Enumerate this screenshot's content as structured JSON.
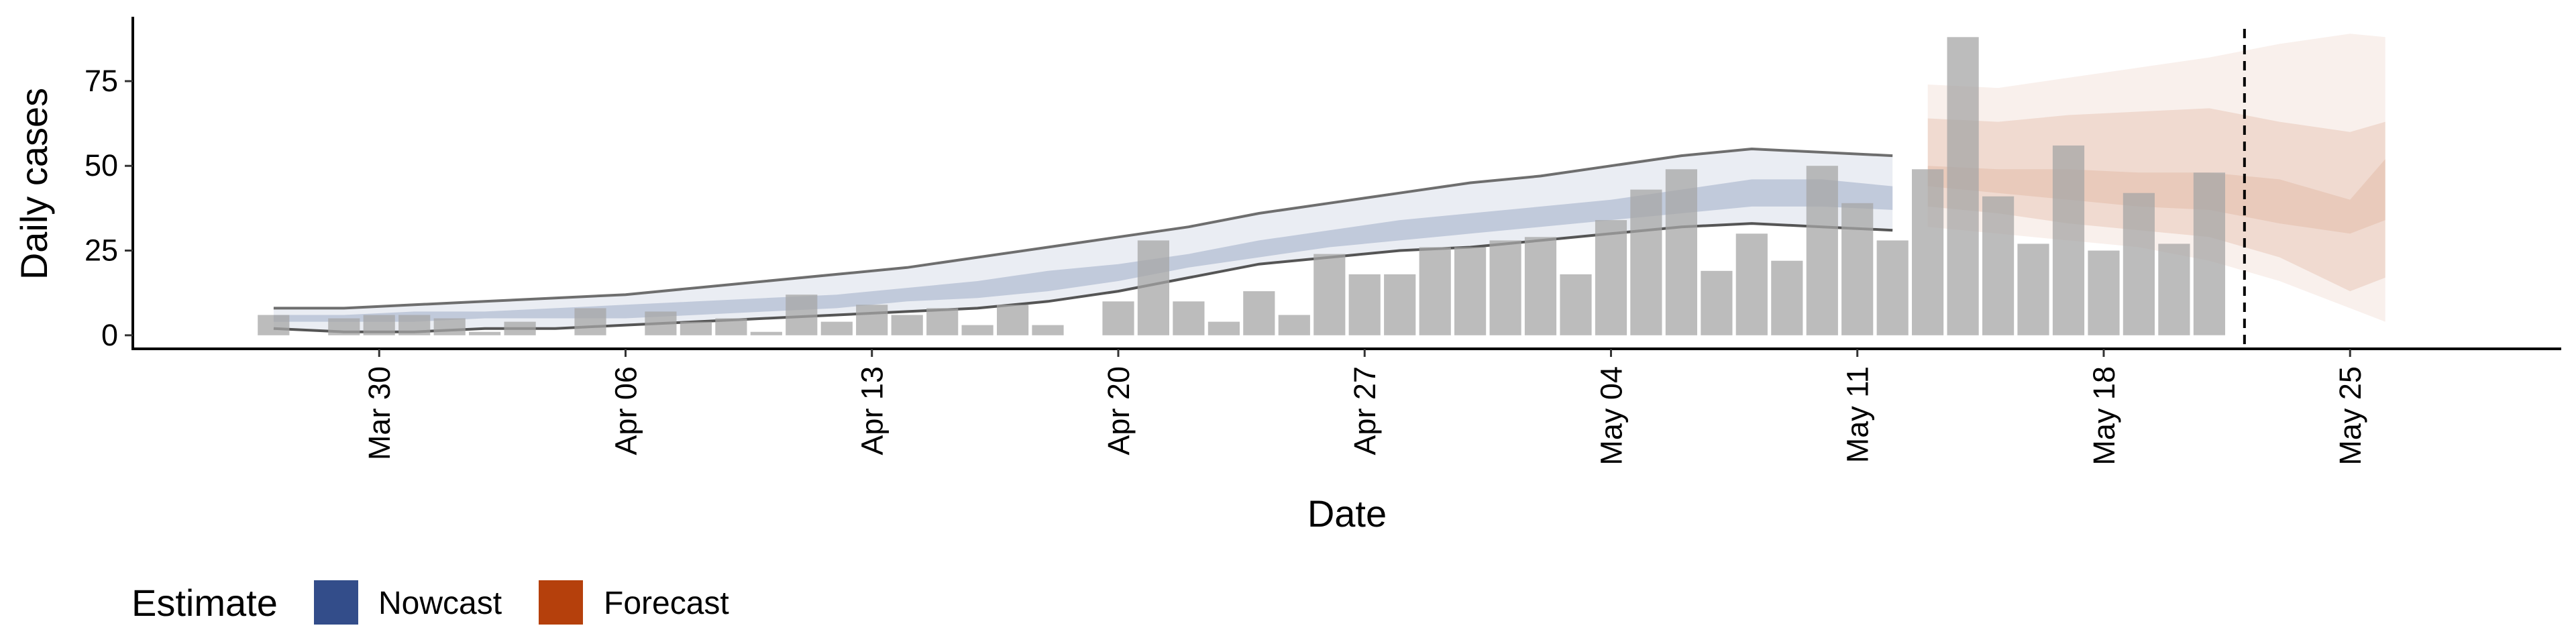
{
  "chart_data": {
    "type": "bar",
    "xlabel": "Date",
    "ylabel": "Daily cases",
    "x_ticks": [
      "Mar 30",
      "Apr 06",
      "Apr 13",
      "Apr 20",
      "Apr 27",
      "May 04",
      "May 11",
      "May 18",
      "May 25"
    ],
    "x_tick_dates": [
      "2020-03-30",
      "2020-04-06",
      "2020-04-13",
      "2020-04-20",
      "2020-04-27",
      "2020-05-04",
      "2020-05-11",
      "2020-05-18",
      "2020-05-25"
    ],
    "y_ticks": [
      0,
      25,
      50,
      75
    ],
    "xlim": [
      "2020-03-23",
      "2020-05-31"
    ],
    "ylim": [
      -4,
      94
    ],
    "grid": false,
    "legend": {
      "title": "Estimate",
      "position": "bottom-left",
      "items": [
        {
          "label": "Nowcast",
          "color": "#334d8a"
        },
        {
          "label": "Forecast",
          "color": "#b5400c"
        }
      ]
    },
    "forecast_start_marker": "2020-05-22",
    "observed_cases": {
      "color": "#a6a6a6",
      "dates": [
        "2020-03-27",
        "2020-03-28",
        "2020-03-29",
        "2020-03-30",
        "2020-03-31",
        "2020-04-01",
        "2020-04-02",
        "2020-04-03",
        "2020-04-04",
        "2020-04-05",
        "2020-04-06",
        "2020-04-07",
        "2020-04-08",
        "2020-04-09",
        "2020-04-10",
        "2020-04-11",
        "2020-04-12",
        "2020-04-13",
        "2020-04-14",
        "2020-04-15",
        "2020-04-16",
        "2020-04-17",
        "2020-04-18",
        "2020-04-19",
        "2020-04-20",
        "2020-04-21",
        "2020-04-22",
        "2020-04-23",
        "2020-04-24",
        "2020-04-25",
        "2020-04-26",
        "2020-04-27",
        "2020-04-28",
        "2020-04-29",
        "2020-04-30",
        "2020-05-01",
        "2020-05-02",
        "2020-05-03",
        "2020-05-04",
        "2020-05-05",
        "2020-05-06",
        "2020-05-07",
        "2020-05-08",
        "2020-05-09",
        "2020-05-10",
        "2020-05-11",
        "2020-05-12",
        "2020-05-13",
        "2020-05-14",
        "2020-05-15",
        "2020-05-16",
        "2020-05-17",
        "2020-05-18",
        "2020-05-19",
        "2020-05-20",
        "2020-05-21",
        "2020-05-22"
      ],
      "values": [
        6,
        0,
        5,
        6,
        6,
        5,
        1,
        4,
        0,
        8,
        0,
        7,
        4,
        5,
        1,
        12,
        4,
        9,
        6,
        8,
        3,
        9,
        3,
        0,
        10,
        28,
        10,
        4,
        13,
        6,
        24,
        18,
        18,
        26,
        26,
        28,
        29,
        18,
        34,
        43,
        49,
        19,
        30,
        22,
        50,
        39,
        28,
        49,
        88,
        41,
        27,
        56,
        25,
        42,
        27,
        48,
        0
      ]
    },
    "nowcast": {
      "color": "#334d8a",
      "dates": [
        "2020-03-27",
        "2020-03-29",
        "2020-03-31",
        "2020-04-02",
        "2020-04-04",
        "2020-04-06",
        "2020-04-08",
        "2020-04-10",
        "2020-04-12",
        "2020-04-14",
        "2020-04-16",
        "2020-04-18",
        "2020-04-20",
        "2020-04-22",
        "2020-04-24",
        "2020-04-26",
        "2020-04-28",
        "2020-04-30",
        "2020-05-02",
        "2020-05-04",
        "2020-05-06",
        "2020-05-08",
        "2020-05-10",
        "2020-05-12"
      ],
      "outer_upper": [
        8,
        8,
        9,
        10,
        11,
        12,
        14,
        16,
        18,
        20,
        23,
        26,
        29,
        32,
        36,
        39,
        42,
        45,
        47,
        50,
        53,
        55,
        54,
        53
      ],
      "outer_lower": [
        2,
        1,
        1,
        2,
        2,
        3,
        4,
        5,
        6,
        7,
        8,
        10,
        13,
        17,
        21,
        23,
        25,
        26,
        28,
        30,
        32,
        33,
        32,
        31
      ],
      "inner_upper": [
        6,
        6,
        7,
        7,
        8,
        9,
        10,
        11,
        12,
        14,
        16,
        19,
        21,
        24,
        28,
        31,
        34,
        36,
        38,
        40,
        43,
        46,
        46,
        44
      ],
      "inner_lower": [
        4,
        4,
        4,
        5,
        5,
        5,
        6,
        7,
        8,
        10,
        11,
        13,
        16,
        20,
        23,
        26,
        28,
        30,
        32,
        34,
        36,
        38,
        38,
        37
      ]
    },
    "forecast": {
      "color": "#b5400c",
      "dates": [
        "2020-05-13",
        "2020-05-15",
        "2020-05-17",
        "2020-05-19",
        "2020-05-21",
        "2020-05-23",
        "2020-05-25",
        "2020-05-26"
      ],
      "outer_upper": [
        74,
        73,
        76,
        79,
        82,
        86,
        89,
        88
      ],
      "outer_lower": [
        32,
        30,
        28,
        26,
        22,
        16,
        8,
        4
      ],
      "inner_upper": [
        64,
        63,
        65,
        66,
        67,
        63,
        60,
        63
      ],
      "inner_lower": [
        38,
        36,
        33,
        31,
        29,
        23,
        13,
        17
      ],
      "mid_upper": [
        50,
        49,
        49,
        48,
        48,
        46,
        40,
        52
      ],
      "mid_lower": [
        44,
        42,
        40,
        38,
        37,
        33,
        30,
        34
      ]
    }
  }
}
